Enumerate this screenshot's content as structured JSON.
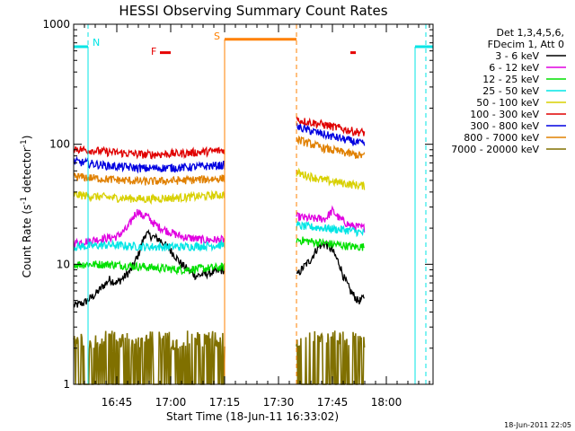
{
  "chart_data": {
    "type": "line",
    "title": "HESSI Observing Summary Count Rates",
    "xlabel": "Start Time (18-Jun-11 16:33:02)",
    "ylabel_main": "Count Rate (s",
    "ylabel_sup1": "-1",
    "ylabel_mid": " detector",
    "ylabel_sup2": "-1",
    "ylabel_end": ")",
    "yscale": "log",
    "ylim": [
      1,
      1000
    ],
    "xlim_minutes": [
      0,
      100
    ],
    "xtick_labels": [
      "16:45",
      "17:00",
      "17:15",
      "17:30",
      "17:45",
      "18:00"
    ],
    "xtick_minutes": [
      12,
      27,
      42,
      57,
      72,
      87
    ],
    "ytick_labels": [
      "1",
      "10",
      "100",
      "1000"
    ],
    "ytick_values": [
      1,
      10,
      100,
      1000
    ],
    "legend_header": [
      "Det 1,3,4,5,6,",
      "FDecim 1, Att 0"
    ],
    "legend_position": "right",
    "timestamp": "18-Jun-2011 22:05",
    "markers": {
      "N_label": "N",
      "F_label": "F",
      "S_label": "S",
      "night_color": "#00e5e5",
      "flare_color": "#e60000",
      "saa_color": "#ff8000",
      "night_level": 650,
      "flare_level": 580,
      "saa_level": 750,
      "night_intervals": [
        [
          0,
          4
        ],
        [
          95,
          100
        ]
      ],
      "night_boundaries": [
        4,
        95
      ],
      "night_dashed": [
        4,
        98
      ],
      "flare_intervals": [
        [
          24,
          27
        ],
        [
          77,
          78.5
        ]
      ],
      "saa_interval": [
        42,
        62
      ],
      "saa_dashed": [
        62
      ]
    },
    "segments": [
      [
        0,
        42
      ],
      [
        62,
        95
      ]
    ],
    "series": [
      {
        "name": "3 - 6 keV",
        "color": "#000000",
        "pts": [
          [
            0,
            4.5
          ],
          [
            3,
            4.8
          ],
          [
            6,
            5.6
          ],
          [
            8,
            6.5
          ],
          [
            10,
            7.5
          ],
          [
            12,
            7.0
          ],
          [
            14,
            7.8
          ],
          [
            16,
            9.0
          ],
          [
            18,
            12.0
          ],
          [
            19,
            15.0
          ],
          [
            20,
            18.0
          ],
          [
            22,
            17.0
          ],
          [
            24,
            16.0
          ],
          [
            26,
            14.0
          ],
          [
            28,
            12.0
          ],
          [
            30,
            10.0
          ],
          [
            34,
            8.0
          ],
          [
            38,
            8.5
          ],
          [
            42,
            9.0
          ],
          [
            62,
            8.0
          ],
          [
            64,
            9.5
          ],
          [
            66,
            11.0
          ],
          [
            68,
            14.0
          ],
          [
            70,
            15.0
          ],
          [
            72,
            13.0
          ],
          [
            74,
            10.0
          ],
          [
            75,
            8.0
          ],
          [
            77,
            6.0
          ],
          [
            79,
            5.0
          ],
          [
            80,
            5.0
          ],
          [
            81,
            5.5
          ]
        ]
      },
      {
        "name": "6 - 12 keV",
        "color": "#e000e0",
        "pts": [
          [
            0,
            15.0
          ],
          [
            6,
            16.0
          ],
          [
            12,
            17.0
          ],
          [
            15,
            20.0
          ],
          [
            17,
            26.0
          ],
          [
            18,
            28.0
          ],
          [
            19,
            25.0
          ],
          [
            20,
            26.0
          ],
          [
            21,
            24.0
          ],
          [
            23,
            21.0
          ],
          [
            26,
            19.0
          ],
          [
            30,
            17.0
          ],
          [
            36,
            16.0
          ],
          [
            42,
            16.0
          ],
          [
            62,
            25.0
          ],
          [
            66,
            24.0
          ],
          [
            70,
            24.0
          ],
          [
            72,
            28.0
          ],
          [
            74,
            24.0
          ],
          [
            77,
            21.0
          ],
          [
            81,
            20.0
          ]
        ]
      },
      {
        "name": "12 - 25 keV",
        "color": "#00e000",
        "pts": [
          [
            0,
            10.0
          ],
          [
            10,
            10.0
          ],
          [
            20,
            9.5
          ],
          [
            30,
            9.0
          ],
          [
            42,
            9.5
          ],
          [
            62,
            16.0
          ],
          [
            70,
            15.0
          ],
          [
            78,
            14.0
          ],
          [
            81,
            14.0
          ]
        ]
      },
      {
        "name": "25 - 50 keV",
        "color": "#00e5e5",
        "pts": [
          [
            0,
            14.0
          ],
          [
            10,
            14.5
          ],
          [
            20,
            14.0
          ],
          [
            30,
            14.0
          ],
          [
            42,
            14.5
          ],
          [
            62,
            21.0
          ],
          [
            70,
            20.0
          ],
          [
            78,
            19.0
          ],
          [
            81,
            18.0
          ]
        ]
      },
      {
        "name": "50 - 100 keV",
        "color": "#d8d000",
        "pts": [
          [
            0,
            38.0
          ],
          [
            10,
            36.0
          ],
          [
            20,
            35.0
          ],
          [
            30,
            36.0
          ],
          [
            42,
            38.0
          ],
          [
            62,
            58.0
          ],
          [
            70,
            50.0
          ],
          [
            78,
            46.0
          ],
          [
            81,
            45.0
          ]
        ]
      },
      {
        "name": "100 - 300 keV",
        "color": "#e00000",
        "pts": [
          [
            0,
            92.0
          ],
          [
            10,
            86.0
          ],
          [
            20,
            82.0
          ],
          [
            30,
            84.0
          ],
          [
            42,
            89.0
          ],
          [
            62,
            160.0
          ],
          [
            70,
            145.0
          ],
          [
            78,
            128.0
          ],
          [
            81,
            125.0
          ]
        ]
      },
      {
        "name": "300 - 800 keV",
        "color": "#0000e0",
        "pts": [
          [
            0,
            72.0
          ],
          [
            10,
            66.0
          ],
          [
            20,
            63.0
          ],
          [
            30,
            64.0
          ],
          [
            42,
            67.0
          ],
          [
            62,
            140.0
          ],
          [
            70,
            120.0
          ],
          [
            78,
            105.0
          ],
          [
            81,
            100.0
          ]
        ]
      },
      {
        "name": "800 - 7000 keV",
        "color": "#e08000",
        "pts": [
          [
            0,
            54.0
          ],
          [
            10,
            51.0
          ],
          [
            20,
            49.0
          ],
          [
            30,
            50.0
          ],
          [
            42,
            52.0
          ],
          [
            62,
            110.0
          ],
          [
            70,
            92.0
          ],
          [
            78,
            82.0
          ],
          [
            81,
            80.0
          ]
        ]
      },
      {
        "name": "7000 - 20000 keV",
        "color": "#807000",
        "pts": [
          [
            0,
            2.8
          ],
          [
            10,
            2.8
          ],
          [
            20,
            2.8
          ],
          [
            30,
            2.8
          ],
          [
            42,
            2.8
          ],
          [
            62,
            2.8
          ],
          [
            70,
            2.8
          ],
          [
            78,
            2.8
          ],
          [
            81,
            2.8
          ]
        ]
      }
    ]
  }
}
